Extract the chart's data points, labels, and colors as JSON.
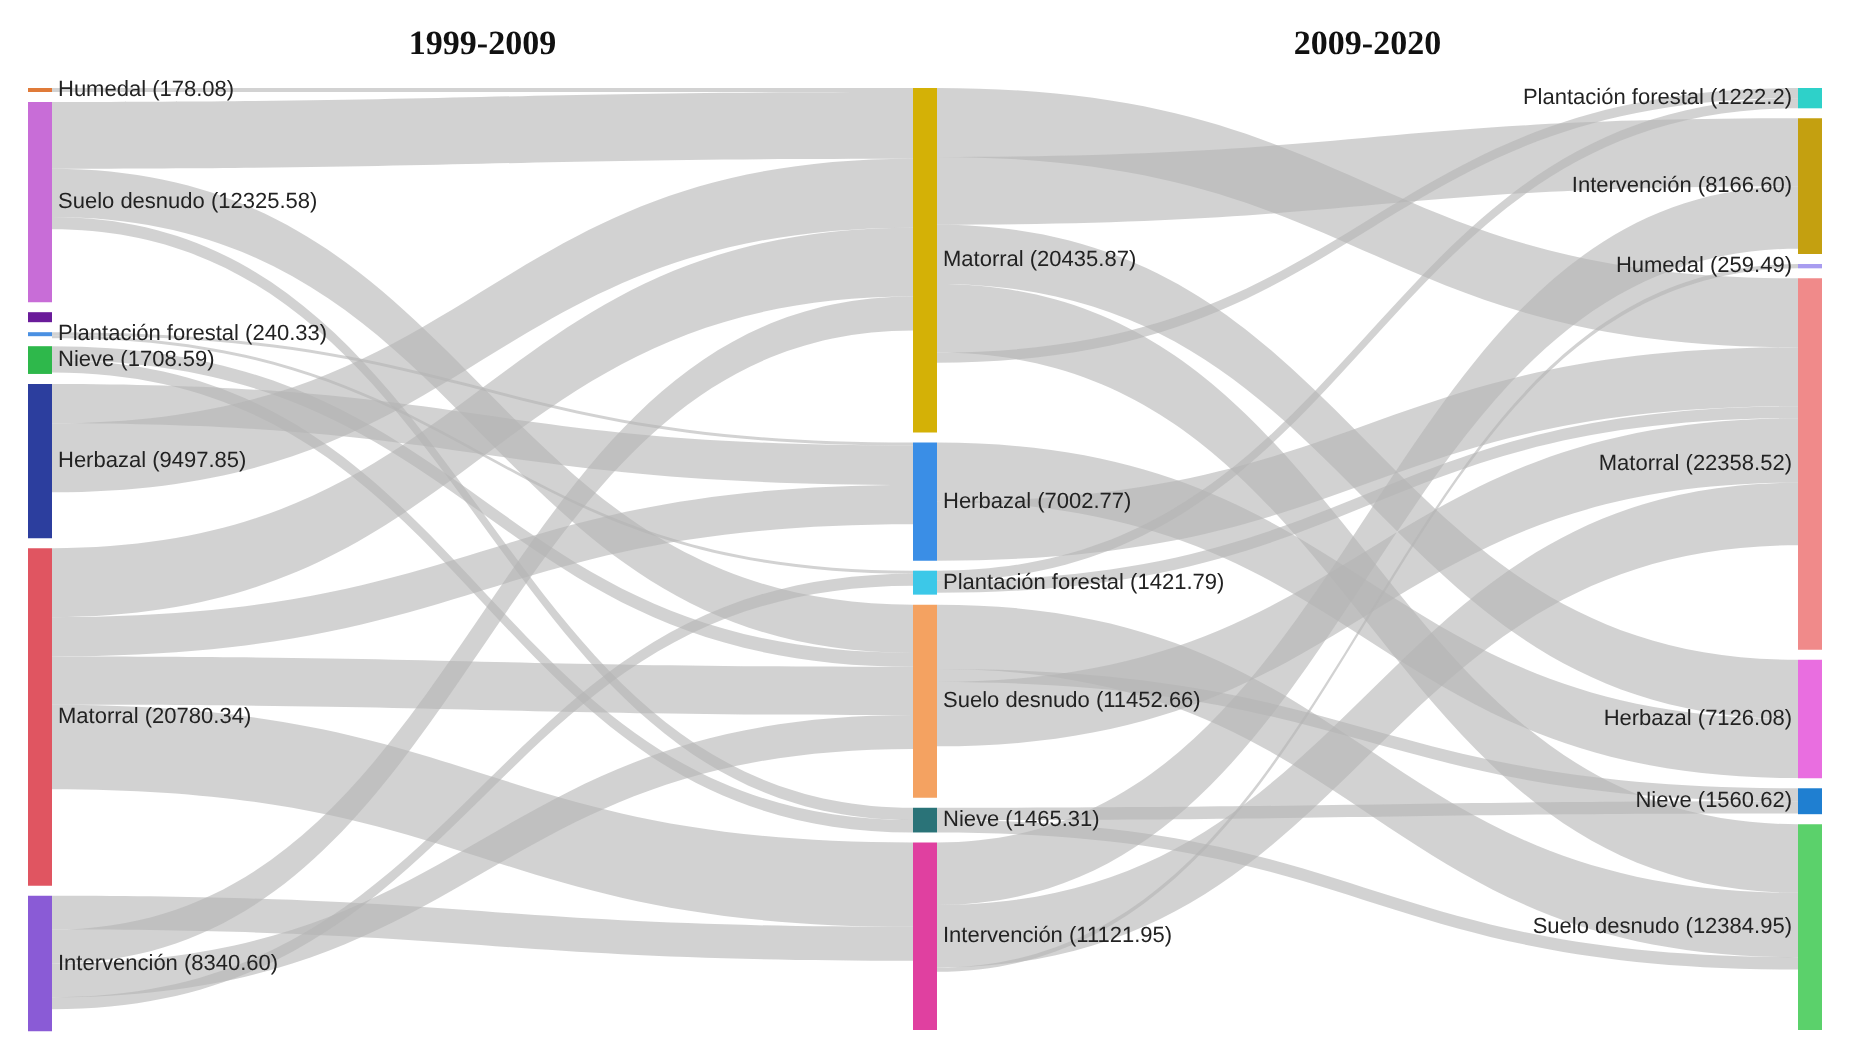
{
  "chart_data": {
    "type": "other",
    "annotations": [
      "1999-2009",
      "2009-2020"
    ],
    "categories": [
      "Humedal",
      "Suelo desnudo",
      null,
      "Plantación forestal",
      "Nieve",
      "Herbazal",
      "Matorral",
      "Intervención",
      "Matorral",
      "Herbazal",
      "Plantación forestal",
      "Suelo desnudo",
      "Nieve",
      "Intervención",
      "Plantación forestal",
      "Intervención",
      "Humedal",
      "Matorral",
      "Herbazal",
      "Nieve",
      "Suelo desnudo"
    ],
    "colors": [
      "#e07b39",
      "#c86dd7",
      "#6a1b9a",
      "#4a90e2",
      "#2eb84b",
      "#2c3e9e",
      "#e05561",
      "#8a5bd6",
      "#d4b106",
      "#3a8ee6",
      "#3cc8e8",
      "#f4a261",
      "#2a7378",
      "#e040a0",
      "#2ed1c9",
      "#c4a010",
      "#a89cf0",
      "#f08a8a",
      "#e96ee0",
      "#1f7fd1",
      "#5bd16b"
    ],
    "series": [
      {
        "values": [
          178.08,
          12325.58,
          null,
          240.33,
          1708.59,
          9497.85,
          20780.34,
          8340.6,
          null,
          null,
          null,
          null,
          null,
          null,
          null,
          null,
          null,
          null,
          null,
          null,
          null
        ],
        "value_labels": [
          "(178.08)",
          "(12325.58)",
          null,
          "(240.33)",
          "(1708.59)",
          "(9497.85)",
          "(20780.34)",
          "(8340.60)",
          null,
          null,
          null,
          null,
          null,
          null,
          null,
          null,
          null,
          null,
          null,
          null,
          null
        ]
      },
      {
        "values": [
          null,
          null,
          null,
          null,
          null,
          null,
          null,
          null,
          20435.87,
          7002.77,
          1421.79,
          11452.66,
          1465.31,
          11121.95,
          null,
          null,
          null,
          null,
          null,
          null,
          null
        ],
        "value_labels": [
          null,
          null,
          null,
          null,
          null,
          null,
          null,
          null,
          "(20435.87)",
          "(7002.77)",
          "(1421.79)",
          "(11452.66)",
          "(1465.31)",
          "(11121.95)",
          null,
          null,
          null,
          null,
          null,
          null,
          null
        ]
      },
      {
        "values": [
          null,
          null,
          null,
          null,
          null,
          null,
          null,
          null,
          null,
          null,
          null,
          null,
          null,
          null,
          1222.2,
          8166.6,
          259.49,
          22358.52,
          7126.08,
          1560.62,
          12384.95
        ],
        "value_labels": [
          null,
          null,
          null,
          null,
          null,
          null,
          null,
          null,
          null,
          null,
          null,
          null,
          null,
          null,
          "(1222.2)",
          "(8166.60)",
          "(259.49)",
          "(22358.52)",
          "(7126.08)",
          "(1560.62)",
          "(12384.95)"
        ]
      },
      {
        "type": "other",
        "color": "#b4b4b4",
        "x": [
          "Humedal",
          "Matorral"
        ],
        "values": [
          null,
          null
        ]
      },
      {
        "type": "other",
        "color": "#b4b4b4",
        "x": [
          "Suelo desnudo",
          "Matorral"
        ],
        "values": [
          null,
          null
        ]
      },
      {
        "type": "other",
        "color": "#b4b4b4",
        "x": [
          "Suelo desnudo",
          "Suelo desnudo"
        ],
        "values": [
          null,
          null
        ]
      },
      {
        "type": "other",
        "color": "#b4b4b4",
        "x": [
          "Suelo desnudo",
          "Nieve"
        ],
        "values": [
          null,
          null
        ]
      },
      {
        "type": "other",
        "color": "#b4b4b4",
        "x": [
          "Plantación forestal",
          "Herbazal"
        ],
        "values": [
          null,
          null
        ]
      },
      {
        "type": "other",
        "color": "#b4b4b4",
        "x": [
          "Plantación forestal",
          "Plantación forestal"
        ],
        "values": [
          null,
          null
        ]
      },
      {
        "type": "other",
        "color": "#b4b4b4",
        "x": [
          "Nieve",
          "Suelo desnudo"
        ],
        "values": [
          null,
          null
        ]
      },
      {
        "type": "other",
        "color": "#b4b4b4",
        "x": [
          "Nieve",
          "Nieve"
        ],
        "values": [
          null,
          null
        ]
      },
      {
        "type": "other",
        "color": "#b4b4b4",
        "x": [
          "Herbazal",
          "Herbazal"
        ],
        "values": [
          null,
          null
        ]
      },
      {
        "type": "other",
        "color": "#b4b4b4",
        "x": [
          "Herbazal",
          "Matorral"
        ],
        "values": [
          null,
          null
        ]
      },
      {
        "type": "other",
        "color": "#b4b4b4",
        "x": [
          "Matorral",
          "Matorral"
        ],
        "values": [
          null,
          null
        ]
      },
      {
        "type": "other",
        "color": "#b4b4b4",
        "x": [
          "Matorral",
          "Herbazal"
        ],
        "values": [
          null,
          null
        ]
      },
      {
        "type": "other",
        "color": "#b4b4b4",
        "x": [
          "Matorral",
          "Suelo desnudo"
        ],
        "values": [
          null,
          null
        ]
      },
      {
        "type": "other",
        "color": "#b4b4b4",
        "x": [
          "Matorral",
          "Intervención"
        ],
        "values": [
          null,
          null
        ]
      },
      {
        "type": "other",
        "color": "#b4b4b4",
        "x": [
          "Intervención",
          "Intervención"
        ],
        "values": [
          null,
          null
        ]
      },
      {
        "type": "other",
        "color": "#b4b4b4",
        "x": [
          "Intervención",
          "Matorral"
        ],
        "values": [
          null,
          null
        ]
      },
      {
        "type": "other",
        "color": "#b4b4b4",
        "x": [
          "Intervención",
          "Suelo desnudo"
        ],
        "values": [
          null,
          null
        ]
      },
      {
        "type": "other",
        "color": "#b4b4b4",
        "x": [
          "Intervención",
          "Plantación forestal"
        ],
        "values": [
          null,
          null
        ]
      },
      {
        "type": "other",
        "color": "#b4b4b4",
        "x": [
          "Matorral",
          "Matorral"
        ],
        "values": [
          null,
          null
        ]
      },
      {
        "type": "other",
        "color": "#b4b4b4",
        "x": [
          "Matorral",
          "Intervención"
        ],
        "values": [
          null,
          null
        ]
      },
      {
        "type": "other",
        "color": "#b4b4b4",
        "x": [
          "Matorral",
          "Herbazal"
        ],
        "values": [
          null,
          null
        ]
      },
      {
        "type": "other",
        "color": "#b4b4b4",
        "x": [
          "Matorral",
          "Suelo desnudo"
        ],
        "values": [
          null,
          null
        ]
      },
      {
        "type": "other",
        "color": "#b4b4b4",
        "x": [
          "Matorral",
          "Plantación forestal"
        ],
        "values": [
          null,
          null
        ]
      },
      {
        "type": "other",
        "color": "#b4b4b4",
        "x": [
          "Herbazal",
          "Herbazal"
        ],
        "values": [
          null,
          null
        ]
      },
      {
        "type": "other",
        "color": "#b4b4b4",
        "x": [
          "Herbazal",
          "Matorral"
        ],
        "values": [
          null,
          null
        ]
      },
      {
        "type": "other",
        "color": "#b4b4b4",
        "x": [
          "Plantación forestal",
          "Plantación forestal"
        ],
        "values": [
          null,
          null
        ]
      },
      {
        "type": "other",
        "color": "#b4b4b4",
        "x": [
          "Plantación forestal",
          "Matorral"
        ],
        "values": [
          null,
          null
        ]
      },
      {
        "type": "other",
        "color": "#b4b4b4",
        "x": [
          "Suelo desnudo",
          "Suelo desnudo"
        ],
        "values": [
          null,
          null
        ]
      },
      {
        "type": "other",
        "color": "#b4b4b4",
        "x": [
          "Suelo desnudo",
          "Nieve"
        ],
        "values": [
          null,
          null
        ]
      },
      {
        "type": "other",
        "color": "#b4b4b4",
        "x": [
          "Suelo desnudo",
          "Matorral"
        ],
        "values": [
          null,
          null
        ]
      },
      {
        "type": "other",
        "color": "#b4b4b4",
        "x": [
          "Nieve",
          "Nieve"
        ],
        "values": [
          null,
          null
        ]
      },
      {
        "type": "other",
        "color": "#b4b4b4",
        "x": [
          "Nieve",
          "Suelo desnudo"
        ],
        "values": [
          null,
          null
        ]
      },
      {
        "type": "other",
        "color": "#b4b4b4",
        "x": [
          "Intervención",
          "Intervención"
        ],
        "values": [
          null,
          null
        ]
      },
      {
        "type": "other",
        "color": "#b4b4b4",
        "x": [
          "Intervención",
          "Matorral"
        ],
        "values": [
          null,
          null
        ]
      },
      {
        "type": "other",
        "color": "#b4b4b4",
        "x": [
          "Intervención",
          "Humedal"
        ],
        "values": [
          null,
          null
        ]
      }
    ]
  }
}
